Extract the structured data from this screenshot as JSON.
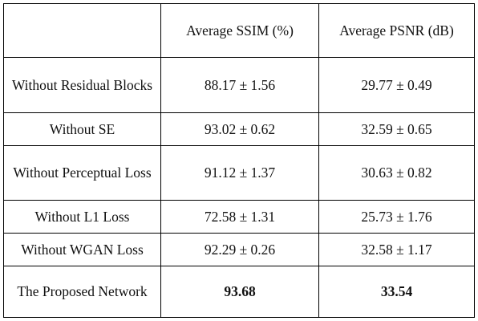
{
  "table": {
    "headers": [
      "",
      "Average SSIM (%)",
      "Average PSNR (dB)"
    ],
    "rows": [
      {
        "label": "Without Residual Blocks",
        "ssim": "88.17 ± 1.56",
        "psnr": "29.77 ± 0.49"
      },
      {
        "label": "Without SE",
        "ssim": "93.02 ± 0.62",
        "psnr": "32.59 ± 0.65"
      },
      {
        "label": "Without Perceptual Loss",
        "ssim": "91.12 ± 1.37",
        "psnr": "30.63 ± 0.82"
      },
      {
        "label": "Without L1 Loss",
        "ssim": "72.58 ± 1.31",
        "psnr": "25.73 ± 1.76"
      },
      {
        "label": "Without WGAN Loss",
        "ssim": "92.29 ± 0.26",
        "psnr": "32.58 ± 1.17"
      },
      {
        "label": "The Proposed Network",
        "ssim": "93.68",
        "psnr": "33.54"
      }
    ]
  }
}
